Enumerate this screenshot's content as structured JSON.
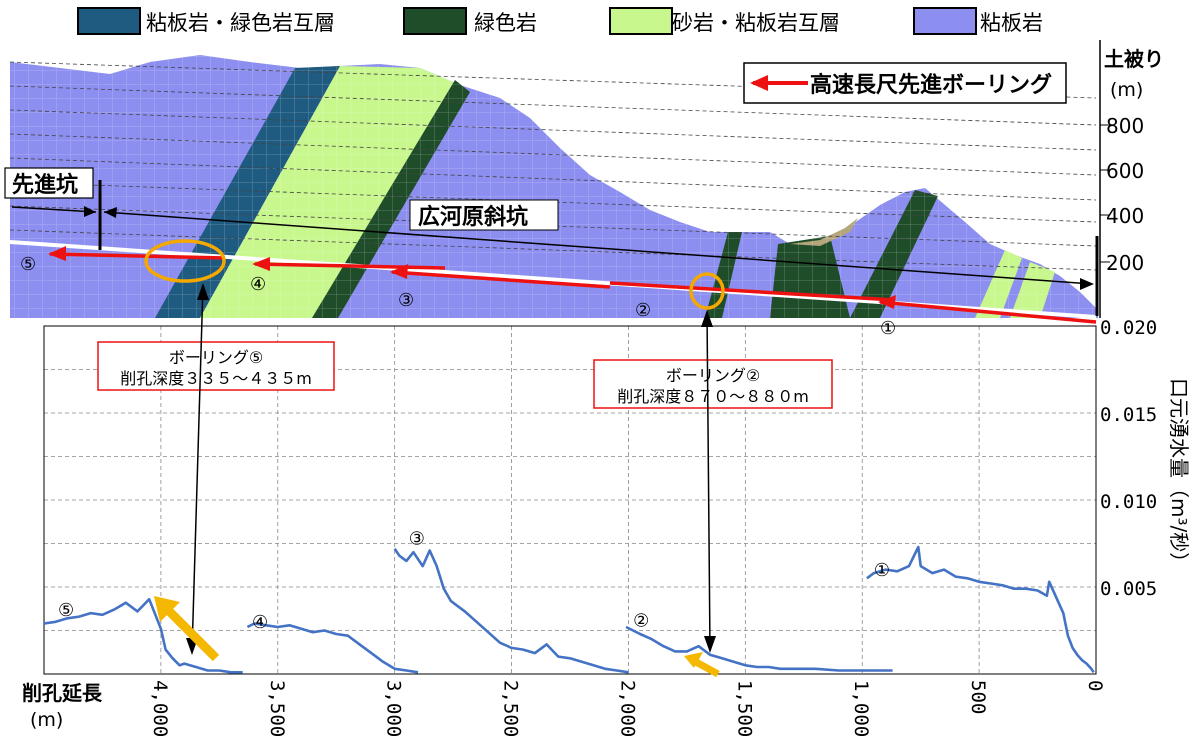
{
  "legend": {
    "items": [
      {
        "label": "粘板岩・緑色岩互層",
        "color": "#1f5a80"
      },
      {
        "label": "緑色岩",
        "color": "#1f4d2a"
      },
      {
        "label": "砂岩・粘板岩互層",
        "color": "#c8f78e"
      },
      {
        "label": "粘板岩",
        "color": "#8c8ff0"
      }
    ]
  },
  "section": {
    "elev_axis_title": "土被り",
    "elev_axis_unit": "(m)",
    "elev_ticks": [
      "800",
      "600",
      "400",
      "200"
    ],
    "legend_boring": "高速長尺先進ボーリング",
    "pilot_tunnel_label": "先進坑",
    "incline_label": "広河原斜坑",
    "boring_numbers": [
      "①",
      "②",
      "③",
      "④",
      "⑤"
    ],
    "callout5": {
      "line1": "ボーリング⑤",
      "line2": "削孔深度３３５～４３５m"
    },
    "callout2": {
      "line1": "ボーリング②",
      "line2": "削孔深度８７０～８８０m"
    }
  },
  "chart_data": {
    "type": "line",
    "xlabel": "削孔延長",
    "xunit": "(m)",
    "ylabel": "口元湧水量（m³/秒）",
    "ylim": [
      0,
      0.02
    ],
    "xlim": [
      4500,
      0
    ],
    "x_axis_reversed": true,
    "y_ticks": [
      "0.020",
      "0.015",
      "0.010",
      "0.005"
    ],
    "x_ticks": [
      {
        "v": 4000,
        "label": "4,000"
      },
      {
        "v": 3500,
        "label": "3,500"
      },
      {
        "v": 3000,
        "label": "3,000"
      },
      {
        "v": 2500,
        "label": "2,500"
      },
      {
        "v": 2000,
        "label": "2,000"
      },
      {
        "v": 1500,
        "label": "1,500"
      },
      {
        "v": 1000,
        "label": "1,000"
      },
      {
        "v": 500,
        "label": "500"
      },
      {
        "v": 0,
        "label": "0"
      }
    ],
    "grid": true,
    "series": [
      {
        "name": "①",
        "x": [
          980,
          950,
          900,
          850,
          800,
          760,
          750,
          700,
          650,
          600,
          550,
          500,
          450,
          400,
          350,
          300,
          250,
          210,
          200,
          180,
          160,
          140,
          120,
          100,
          80,
          60,
          40,
          20,
          10
        ],
        "y": [
          0.0055,
          0.0058,
          0.006,
          0.0059,
          0.0062,
          0.0073,
          0.0062,
          0.0058,
          0.006,
          0.0056,
          0.0055,
          0.0053,
          0.0052,
          0.0051,
          0.0049,
          0.0049,
          0.0048,
          0.0045,
          0.0053,
          0.0047,
          0.0041,
          0.0035,
          0.0022,
          0.0015,
          0.0011,
          0.0008,
          0.0006,
          0.0003,
          0.0001
        ]
      },
      {
        "name": "②",
        "x": [
          2010,
          1980,
          1950,
          1900,
          1850,
          1800,
          1750,
          1700,
          1650,
          1600,
          1550,
          1500,
          1450,
          1400,
          1350,
          1300,
          1200,
          1100,
          1000,
          900,
          870
        ],
        "y": [
          0.0027,
          0.0025,
          0.0023,
          0.002,
          0.0016,
          0.0013,
          0.0013,
          0.0016,
          0.0011,
          0.0009,
          0.0007,
          0.0005,
          0.0004,
          0.0004,
          0.0003,
          0.0003,
          0.0003,
          0.0002,
          0.0002,
          0.0002,
          0.0002
        ]
      },
      {
        "name": "③",
        "x": [
          3000,
          2980,
          2950,
          2920,
          2880,
          2850,
          2820,
          2790,
          2760,
          2700,
          2650,
          2600,
          2550,
          2500,
          2450,
          2400,
          2350,
          2300,
          2250,
          2200,
          2150,
          2100,
          2050,
          2000
        ],
        "y": [
          0.0072,
          0.0068,
          0.0065,
          0.007,
          0.0062,
          0.0071,
          0.0062,
          0.0049,
          0.0042,
          0.0036,
          0.003,
          0.0024,
          0.0018,
          0.0015,
          0.0014,
          0.0012,
          0.0017,
          0.001,
          0.0009,
          0.0007,
          0.0005,
          0.0003,
          0.0002,
          0.0001
        ]
      },
      {
        "name": "④",
        "x": [
          3630,
          3600,
          3550,
          3500,
          3450,
          3400,
          3350,
          3300,
          3250,
          3200,
          3150,
          3100,
          3050,
          3000,
          2950,
          2900
        ],
        "y": [
          0.0027,
          0.0029,
          0.0028,
          0.0027,
          0.0028,
          0.0026,
          0.0024,
          0.0025,
          0.0023,
          0.0022,
          0.0017,
          0.0012,
          0.0007,
          0.0003,
          0.0002,
          0.0001
        ]
      },
      {
        "name": "⑤",
        "x": [
          4500,
          4450,
          4400,
          4350,
          4300,
          4250,
          4200,
          4150,
          4100,
          4050,
          4000,
          3980,
          3950,
          3920,
          3900,
          3850,
          3800,
          3750,
          3700,
          3650
        ],
        "y": [
          0.0029,
          0.003,
          0.0032,
          0.0033,
          0.0035,
          0.0034,
          0.0037,
          0.0041,
          0.0036,
          0.0043,
          0.0026,
          0.0014,
          0.0009,
          0.0005,
          0.0006,
          0.0004,
          0.0002,
          0.0002,
          0.0001,
          0.0001
        ]
      }
    ],
    "series_labels": [
      {
        "name": "①",
        "x": 950,
        "y": 0.0061
      },
      {
        "name": "②",
        "x": 1980,
        "y": 0.0032
      },
      {
        "name": "③",
        "x": 2940,
        "y": 0.0079
      },
      {
        "name": "④",
        "x": 3610,
        "y": 0.0031
      },
      {
        "name": "⑤",
        "x": 4440,
        "y": 0.0038
      }
    ],
    "color": "#4472c4"
  }
}
